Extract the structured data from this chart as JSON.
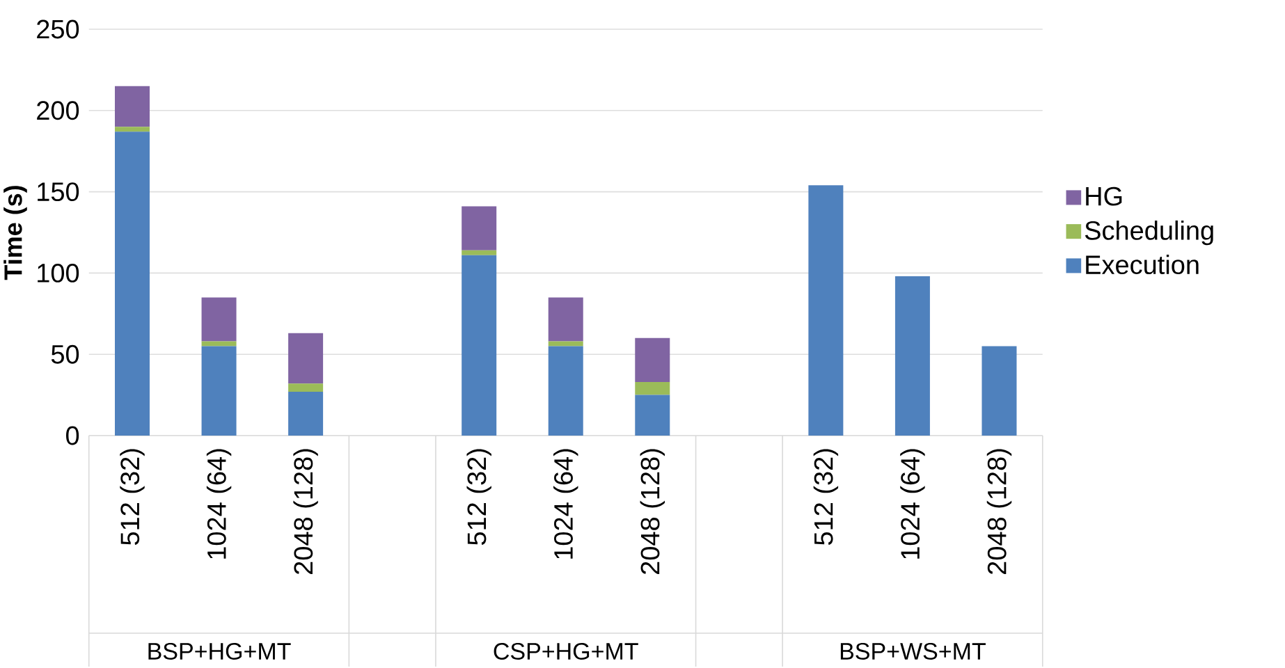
{
  "chart_data": {
    "type": "bar",
    "stacked": true,
    "ylabel": "Time (s)",
    "categories": [
      "512 (32)",
      "1024 (64)",
      "2048 (128)",
      null,
      "512 (32)",
      "1024 (64)",
      "2048 (128)",
      null,
      "512 (32)",
      "1024 (64)",
      "2048 (128)"
    ],
    "annotations": [
      "BSP+HG+MT",
      "CSP+HG+MT",
      "BSP+WS+MT"
    ],
    "series": [
      {
        "name": "Execution",
        "color": "#4f81bd",
        "values": [
          187,
          55,
          27,
          null,
          111,
          55,
          25,
          null,
          154,
          98,
          55
        ]
      },
      {
        "name": "Scheduling",
        "color": "#9bbb59",
        "values": [
          3,
          3,
          5,
          null,
          3,
          3,
          8,
          null,
          null,
          null,
          null
        ]
      },
      {
        "name": "HG",
        "color": "#8064a2",
        "values": [
          25,
          27,
          31,
          null,
          27,
          27,
          27,
          null,
          null,
          null,
          null
        ]
      }
    ],
    "ylim": [
      0,
      250
    ],
    "yticks": [
      0,
      50,
      100,
      150,
      200,
      250
    ],
    "grid": "y",
    "legend": "right"
  }
}
